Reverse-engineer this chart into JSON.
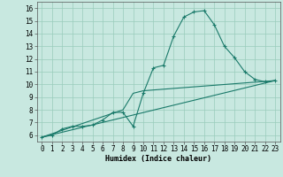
{
  "xlabel": "Humidex (Indice chaleur)",
  "background_color": "#c8e8e0",
  "grid_color": "#99ccbb",
  "line_color": "#1a7a6a",
  "xlim": [
    -0.5,
    23.5
  ],
  "ylim": [
    5.5,
    16.5
  ],
  "xticks": [
    0,
    1,
    2,
    3,
    4,
    5,
    6,
    7,
    8,
    9,
    10,
    11,
    12,
    13,
    14,
    15,
    16,
    17,
    18,
    19,
    20,
    21,
    22,
    23
  ],
  "yticks": [
    6,
    7,
    8,
    9,
    10,
    11,
    12,
    13,
    14,
    15,
    16
  ],
  "line1_x": [
    0,
    1,
    2,
    3,
    4,
    5,
    6,
    7,
    8,
    9,
    10,
    11,
    12,
    13,
    14,
    15,
    16,
    17,
    18,
    19,
    20,
    21,
    22,
    23
  ],
  "line1_y": [
    5.85,
    6.0,
    6.5,
    6.7,
    6.7,
    6.8,
    7.2,
    7.8,
    7.8,
    6.7,
    9.3,
    11.3,
    11.5,
    13.8,
    15.3,
    15.7,
    15.8,
    14.7,
    13.0,
    12.1,
    11.0,
    10.4,
    10.2,
    10.3
  ],
  "line2_x": [
    0,
    23
  ],
  "line2_y": [
    5.85,
    10.3
  ],
  "line3_x": [
    0,
    8,
    9,
    10,
    23
  ],
  "line3_y": [
    5.85,
    8.0,
    9.3,
    9.5,
    10.3
  ],
  "marker_size": 3.0,
  "tick_fontsize": 5.5,
  "xlabel_fontsize": 6.0
}
